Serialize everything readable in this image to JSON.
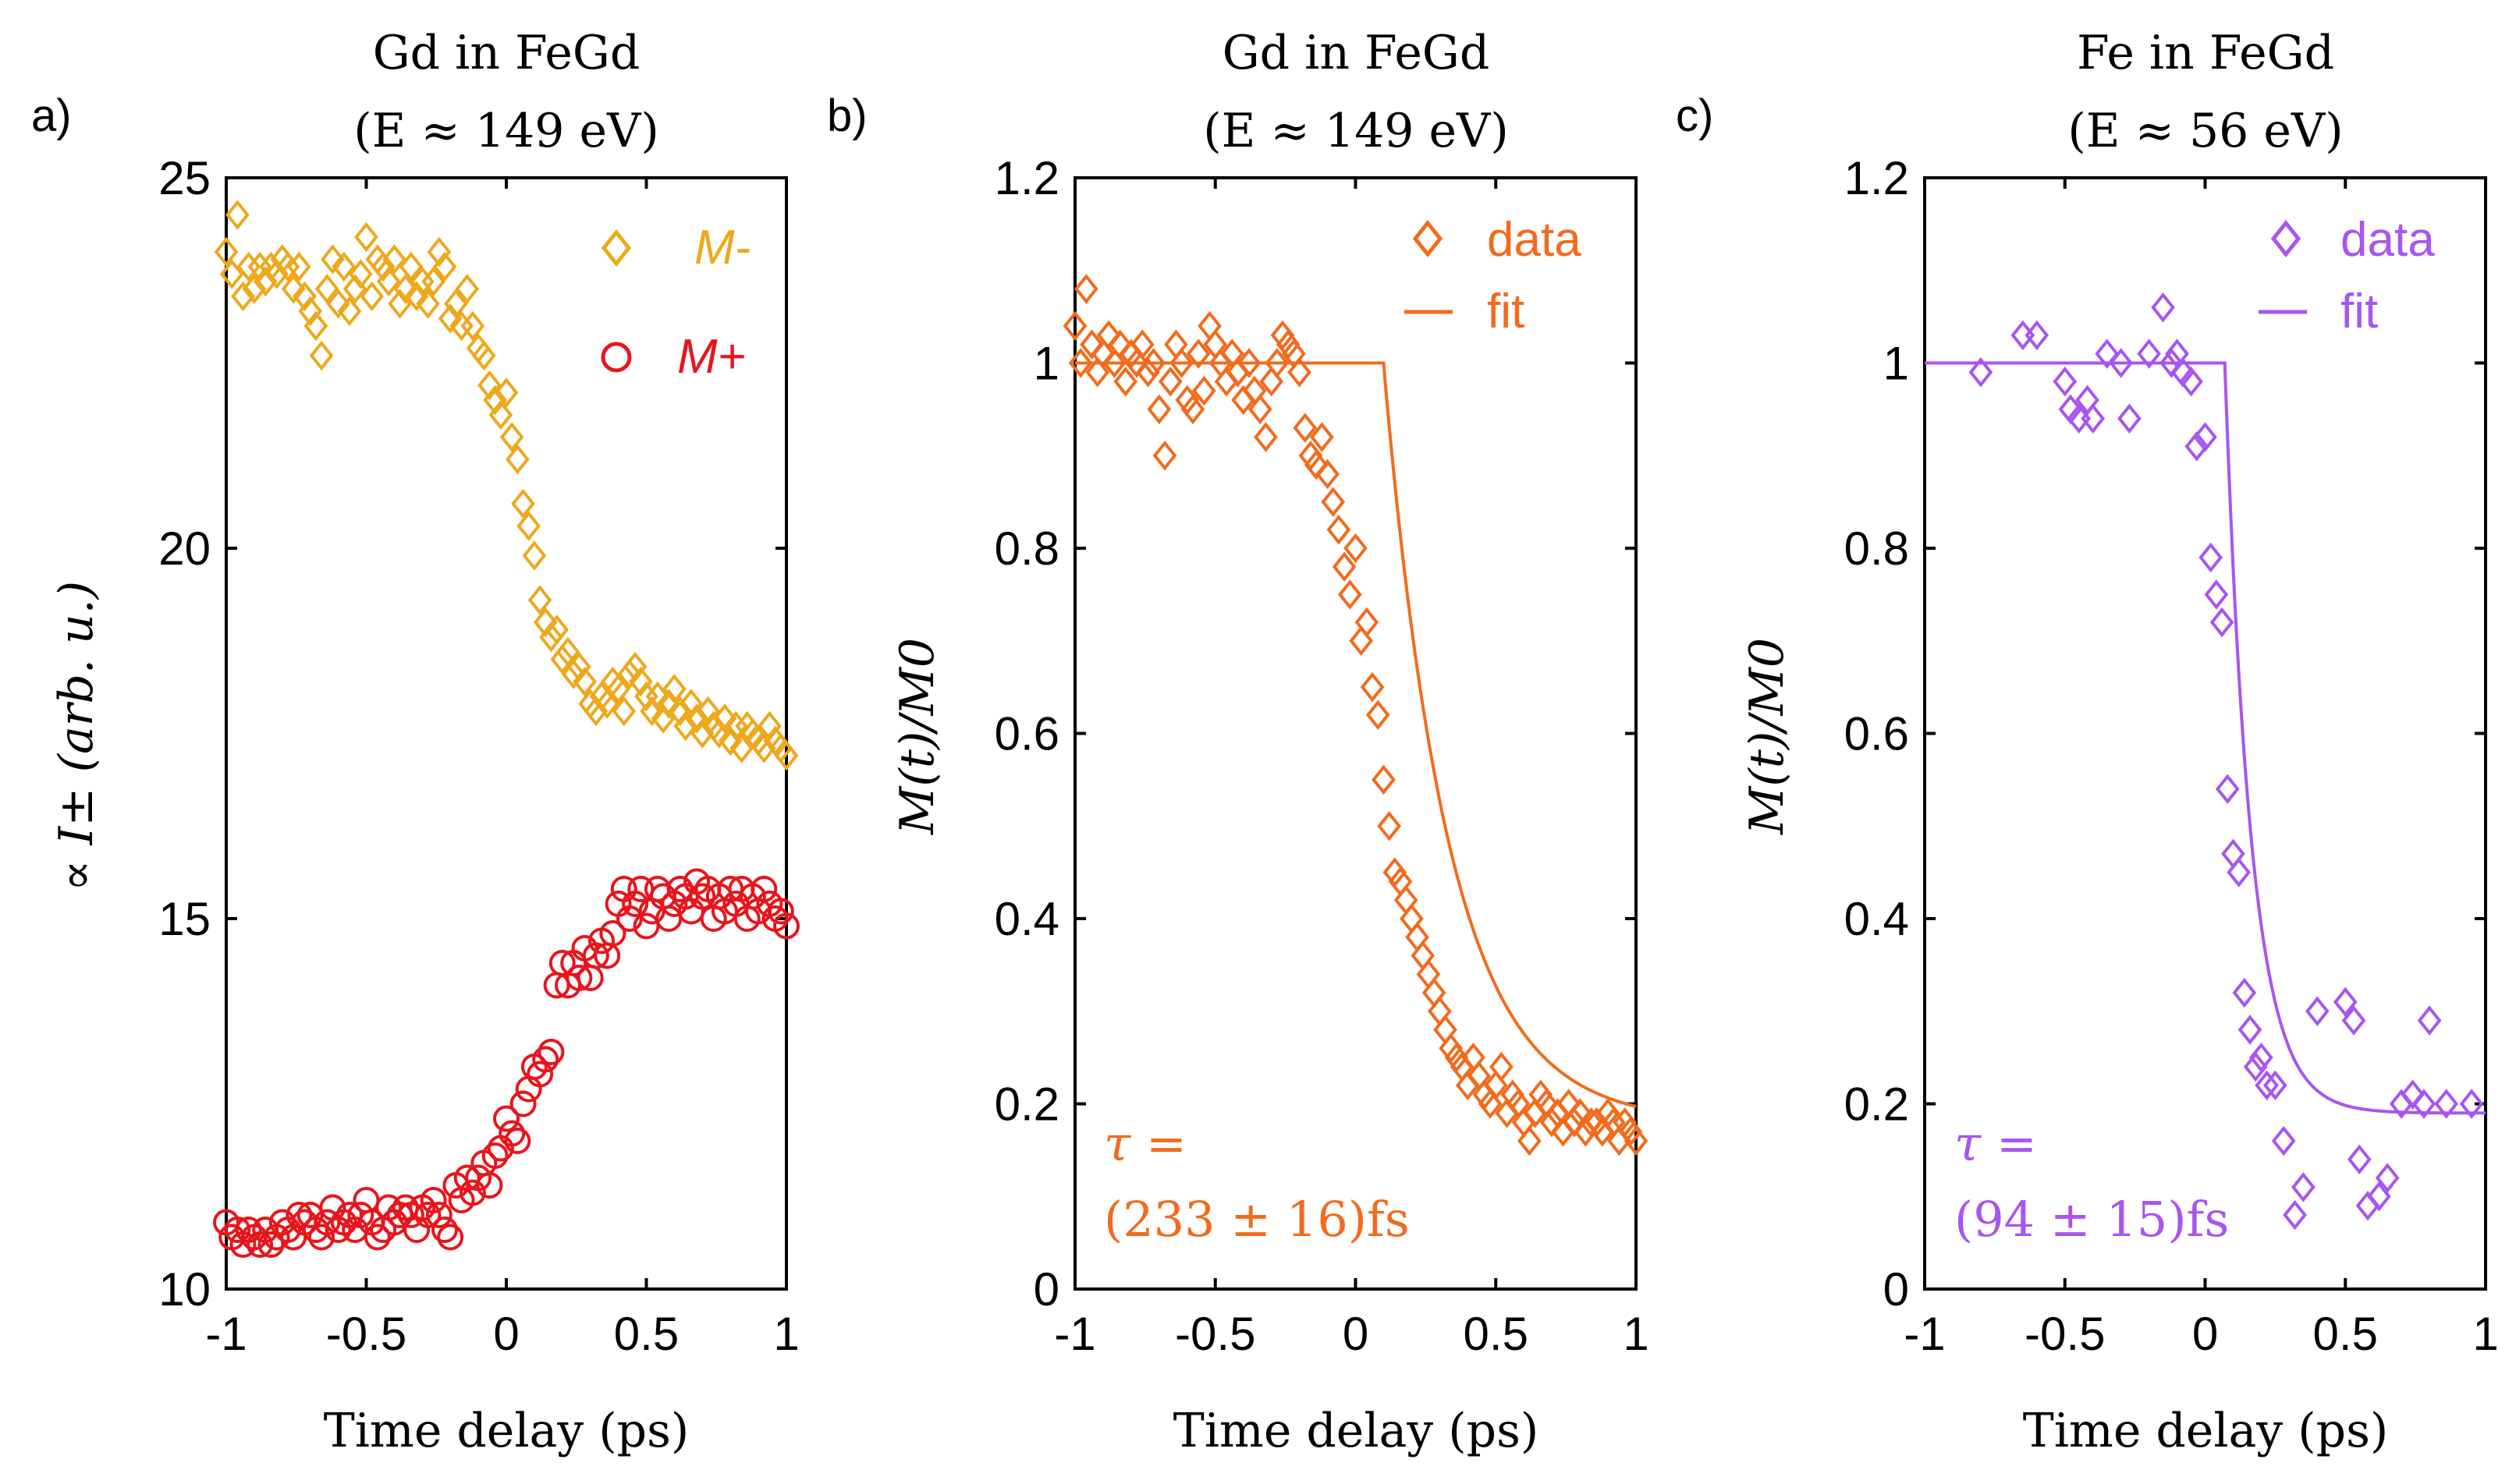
{
  "figure": {
    "panel_labels": [
      "a)",
      "b)",
      "c)"
    ]
  },
  "chart_data": [
    {
      "type": "scatter",
      "panel": "a)",
      "title_line1": "Gd in FeGd",
      "title_line2": "(E ≈ 149 eV)",
      "xlabel": "Time delay (ps)",
      "ylabel": "∝ I± (arb. u.)",
      "xlim": [
        -1,
        1
      ],
      "ylim": [
        10,
        25
      ],
      "xticks": [
        "-1",
        "-0.5",
        "0",
        "0.5",
        "1"
      ],
      "yticks": [
        "10",
        "15",
        "20",
        "25"
      ],
      "legend": [
        "M-",
        "M+"
      ],
      "legend_placement": "top-right",
      "series": [
        {
          "name": "M-",
          "marker": "diamond",
          "color": "#EDA81C",
          "x": [
            -1,
            -0.98,
            -0.96,
            -0.94,
            -0.92,
            -0.9,
            -0.88,
            -0.86,
            -0.84,
            -0.82,
            -0.8,
            -0.78,
            -0.76,
            -0.74,
            -0.72,
            -0.7,
            -0.68,
            -0.66,
            -0.64,
            -0.62,
            -0.6,
            -0.58,
            -0.56,
            -0.54,
            -0.52,
            -0.5,
            -0.48,
            -0.46,
            -0.44,
            -0.42,
            -0.4,
            -0.38,
            -0.36,
            -0.34,
            -0.32,
            -0.3,
            -0.28,
            -0.26,
            -0.24,
            -0.22,
            -0.2,
            -0.18,
            -0.16,
            -0.14,
            -0.12,
            -0.1,
            -0.08,
            -0.06,
            -0.04,
            -0.02,
            0,
            0.02,
            0.04,
            0.06,
            0.08,
            0.1,
            0.12,
            0.14,
            0.16,
            0.18,
            0.2,
            0.22,
            0.24,
            0.26,
            0.28,
            0.3,
            0.32,
            0.34,
            0.36,
            0.38,
            0.4,
            0.42,
            0.44,
            0.46,
            0.48,
            0.5,
            0.52,
            0.54,
            0.56,
            0.58,
            0.6,
            0.62,
            0.64,
            0.66,
            0.68,
            0.7,
            0.72,
            0.74,
            0.76,
            0.78,
            0.8,
            0.82,
            0.84,
            0.86,
            0.88,
            0.9,
            0.92,
            0.94,
            0.96,
            0.98,
            1
          ],
          "y": [
            24.0,
            23.7,
            24.5,
            23.4,
            23.8,
            23.5,
            23.8,
            23.6,
            23.8,
            23.7,
            23.9,
            23.8,
            23.5,
            23.8,
            23.4,
            23.2,
            23.0,
            22.6,
            23.5,
            23.9,
            23.3,
            23.8,
            23.2,
            23.5,
            23.7,
            24.2,
            23.4,
            23.9,
            23.8,
            23.6,
            23.9,
            23.3,
            23.5,
            23.8,
            23.4,
            23.6,
            23.3,
            23.6,
            24.0,
            23.8,
            23.1,
            23.3,
            23.0,
            23.5,
            23.0,
            22.7,
            22.6,
            22.2,
            22.0,
            21.8,
            22.1,
            21.5,
            21.2,
            20.6,
            20.3,
            19.9,
            19.3,
            19.0,
            18.8,
            18.9,
            18.5,
            18.6,
            18.3,
            18.4,
            18.2,
            17.9,
            17.8,
            18.0,
            17.9,
            18.2,
            18.1,
            17.8,
            18.3,
            18.4,
            18.2,
            18.0,
            17.8,
            18.0,
            17.7,
            17.9,
            18.1,
            17.8,
            17.6,
            17.9,
            17.7,
            17.5,
            17.8,
            17.6,
            17.5,
            17.7,
            17.4,
            17.6,
            17.3,
            17.6,
            17.5,
            17.4,
            17.3,
            17.6,
            17.4,
            17.3,
            17.2
          ]
        },
        {
          "name": "M+",
          "marker": "circle",
          "color": "#E8151C",
          "x": [
            -1,
            -0.98,
            -0.96,
            -0.94,
            -0.92,
            -0.9,
            -0.88,
            -0.86,
            -0.84,
            -0.82,
            -0.8,
            -0.78,
            -0.76,
            -0.74,
            -0.72,
            -0.7,
            -0.68,
            -0.66,
            -0.64,
            -0.62,
            -0.6,
            -0.58,
            -0.56,
            -0.54,
            -0.52,
            -0.5,
            -0.48,
            -0.46,
            -0.44,
            -0.42,
            -0.4,
            -0.38,
            -0.36,
            -0.34,
            -0.32,
            -0.3,
            -0.28,
            -0.26,
            -0.24,
            -0.22,
            -0.2,
            -0.18,
            -0.16,
            -0.14,
            -0.12,
            -0.1,
            -0.08,
            -0.06,
            -0.04,
            -0.02,
            0,
            0.02,
            0.04,
            0.06,
            0.08,
            0.1,
            0.12,
            0.14,
            0.16,
            0.18,
            0.2,
            0.22,
            0.24,
            0.26,
            0.28,
            0.3,
            0.32,
            0.34,
            0.36,
            0.38,
            0.4,
            0.42,
            0.44,
            0.46,
            0.48,
            0.5,
            0.52,
            0.54,
            0.56,
            0.58,
            0.6,
            0.62,
            0.64,
            0.66,
            0.68,
            0.7,
            0.72,
            0.74,
            0.76,
            0.78,
            0.8,
            0.82,
            0.84,
            0.86,
            0.88,
            0.9,
            0.92,
            0.94,
            0.96,
            0.98,
            1
          ],
          "y": [
            10.9,
            10.7,
            10.8,
            10.6,
            10.8,
            10.7,
            10.6,
            10.8,
            10.6,
            10.7,
            10.9,
            10.8,
            10.7,
            11.0,
            10.9,
            11.0,
            10.8,
            10.7,
            10.9,
            11.1,
            10.8,
            10.9,
            11.0,
            10.8,
            11.0,
            11.2,
            10.9,
            10.7,
            10.8,
            11.1,
            10.9,
            11.0,
            11.1,
            11.0,
            10.8,
            11.1,
            11.0,
            11.2,
            11.0,
            10.8,
            10.7,
            11.4,
            11.2,
            11.5,
            11.3,
            11.5,
            11.7,
            11.4,
            11.8,
            11.9,
            12.3,
            12.1,
            12.0,
            12.5,
            12.7,
            13.0,
            12.9,
            13.1,
            13.2,
            14.1,
            14.4,
            14.1,
            14.4,
            14.2,
            14.6,
            14.2,
            14.5,
            14.7,
            14.5,
            14.8,
            15.2,
            15.4,
            15.0,
            15.2,
            15.4,
            14.9,
            15.1,
            15.4,
            15.3,
            15.0,
            15.2,
            15.4,
            15.3,
            15.1,
            15.5,
            15.3,
            15.4,
            15.0,
            15.3,
            15.1,
            15.4,
            15.2,
            15.4,
            15.0,
            15.3,
            15.1,
            15.4,
            15.2,
            15.0,
            15.1,
            14.9
          ]
        }
      ]
    },
    {
      "type": "scatter",
      "panel": "b)",
      "title_line1": "Gd in FeGd",
      "title_line2": "(E ≈ 149 eV)",
      "xlabel": "Time delay (ps)",
      "ylabel": "M(t)/M0",
      "xlim": [
        -1,
        1
      ],
      "ylim": [
        0,
        1.2
      ],
      "xticks": [
        "-1",
        "-0.5",
        "0",
        "0.5",
        "1"
      ],
      "yticks": [
        "0",
        "0.2",
        "0.4",
        "0.6",
        "0.8",
        "1",
        "1.2"
      ],
      "legend": [
        "data",
        "fit"
      ],
      "legend_placement": "top-right",
      "annotation_line1": "τ =",
      "annotation_line2": "(233 ± 16)fs",
      "fit": {
        "t0": 0.1,
        "tau": 0.233,
        "m_inf": 0.18
      },
      "series": [
        {
          "name": "data",
          "marker": "diamond",
          "color": "#F26B1D",
          "x": [
            -1,
            -0.98,
            -0.96,
            -0.94,
            -0.92,
            -0.9,
            -0.88,
            -0.86,
            -0.84,
            -0.82,
            -0.8,
            -0.78,
            -0.76,
            -0.74,
            -0.72,
            -0.7,
            -0.68,
            -0.66,
            -0.64,
            -0.62,
            -0.6,
            -0.58,
            -0.56,
            -0.54,
            -0.52,
            -0.5,
            -0.48,
            -0.46,
            -0.44,
            -0.42,
            -0.4,
            -0.38,
            -0.36,
            -0.34,
            -0.32,
            -0.3,
            -0.28,
            -0.26,
            -0.24,
            -0.22,
            -0.2,
            -0.18,
            -0.16,
            -0.14,
            -0.12,
            -0.1,
            -0.08,
            -0.06,
            -0.04,
            -0.02,
            0,
            0.02,
            0.04,
            0.06,
            0.08,
            0.1,
            0.12,
            0.14,
            0.16,
            0.18,
            0.2,
            0.22,
            0.24,
            0.26,
            0.28,
            0.3,
            0.32,
            0.34,
            0.36,
            0.38,
            0.4,
            0.42,
            0.44,
            0.46,
            0.48,
            0.5,
            0.52,
            0.54,
            0.56,
            0.58,
            0.6,
            0.62,
            0.64,
            0.66,
            0.68,
            0.7,
            0.72,
            0.74,
            0.76,
            0.78,
            0.8,
            0.82,
            0.84,
            0.86,
            0.88,
            0.9,
            0.92,
            0.94,
            0.96,
            0.98,
            1
          ],
          "y": [
            1.04,
            1.0,
            1.08,
            1.02,
            0.99,
            1.01,
            1.03,
            1.0,
            1.02,
            0.98,
            1.01,
            1.0,
            1.02,
            0.99,
            1.0,
            0.95,
            0.9,
            0.98,
            1.02,
            1.0,
            0.96,
            0.95,
            1.01,
            0.97,
            1.04,
            1.02,
            1.0,
            0.98,
            1.01,
            0.99,
            0.96,
            1.0,
            0.97,
            0.95,
            0.92,
            0.98,
            1.0,
            1.03,
            1.02,
            1.01,
            0.99,
            0.93,
            0.9,
            0.89,
            0.92,
            0.88,
            0.85,
            0.82,
            0.78,
            0.75,
            0.8,
            0.7,
            0.72,
            0.65,
            0.62,
            0.55,
            0.5,
            0.45,
            0.44,
            0.42,
            0.4,
            0.38,
            0.36,
            0.34,
            0.32,
            0.3,
            0.28,
            0.26,
            0.25,
            0.24,
            0.22,
            0.25,
            0.23,
            0.21,
            0.2,
            0.22,
            0.24,
            0.19,
            0.21,
            0.2,
            0.18,
            0.16,
            0.19,
            0.21,
            0.2,
            0.18,
            0.19,
            0.17,
            0.2,
            0.18,
            0.19,
            0.17,
            0.18,
            0.18,
            0.17,
            0.19,
            0.18,
            0.16,
            0.18,
            0.17,
            0.16
          ]
        }
      ]
    },
    {
      "type": "scatter",
      "panel": "c)",
      "title_line1": "Fe in FeGd",
      "title_line2": "(E ≈ 56 eV)",
      "xlabel": "Time delay (ps)",
      "ylabel": "M(t)/M0",
      "xlim": [
        -1,
        1
      ],
      "ylim": [
        0,
        1.2
      ],
      "xticks": [
        "-1",
        "-0.5",
        "0",
        "0.5",
        "1"
      ],
      "yticks": [
        "0",
        "0.2",
        "0.4",
        "0.6",
        "0.8",
        "1",
        "1.2"
      ],
      "legend": [
        "data",
        "fit"
      ],
      "legend_placement": "top-right",
      "annotation_line1": "τ =",
      "annotation_line2": "(94 ± 15)fs",
      "fit": {
        "t0": 0.07,
        "tau": 0.094,
        "m_inf": 0.19
      },
      "series": [
        {
          "name": "data",
          "marker": "diamond",
          "color": "#A855F0",
          "x": [
            -0.8,
            -0.65,
            -0.6,
            -0.5,
            -0.48,
            -0.45,
            -0.42,
            -0.4,
            -0.35,
            -0.3,
            -0.27,
            -0.2,
            -0.15,
            -0.12,
            -0.1,
            -0.08,
            -0.05,
            -0.03,
            0,
            0.02,
            0.04,
            0.06,
            0.08,
            0.1,
            0.12,
            0.14,
            0.16,
            0.18,
            0.2,
            0.22,
            0.25,
            0.28,
            0.32,
            0.35,
            0.4,
            0.5,
            0.53,
            0.55,
            0.58,
            0.62,
            0.65,
            0.7,
            0.74,
            0.78,
            0.8,
            0.86,
            0.95
          ],
          "y": [
            0.99,
            1.03,
            1.03,
            0.98,
            0.95,
            0.94,
            0.96,
            0.94,
            1.01,
            1.0,
            0.94,
            1.01,
            1.06,
            1.0,
            1.01,
            0.99,
            0.98,
            0.91,
            0.92,
            0.79,
            0.75,
            0.72,
            0.54,
            0.47,
            0.45,
            0.32,
            0.28,
            0.24,
            0.25,
            0.22,
            0.22,
            0.16,
            0.08,
            0.11,
            0.3,
            0.31,
            0.29,
            0.14,
            0.09,
            0.1,
            0.12,
            0.2,
            0.21,
            0.2,
            0.29,
            0.2,
            0.2
          ]
        }
      ]
    }
  ]
}
